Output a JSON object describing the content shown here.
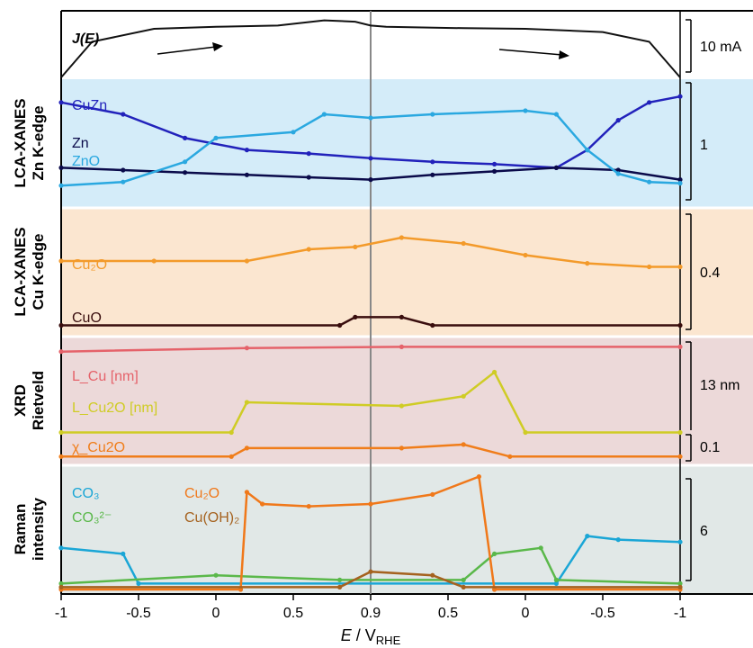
{
  "figure": {
    "x_axis": {
      "label_E": "E",
      "label_sep": " / ",
      "label_V": "V",
      "label_sub": "RHE",
      "ticks": [
        "-1",
        "-0.5",
        "0",
        "0.5",
        "0.9",
        "0.5",
        "0",
        "-0.5",
        "-1"
      ]
    },
    "panels": [
      {
        "id": "je",
        "label_lines": [],
        "bg": "#ffffff",
        "scale": "10 mA"
      },
      {
        "id": "zn",
        "label_lines": [
          "LCA-XANES",
          "Zn K-edge"
        ],
        "bg": "#d4ecf9",
        "scale": "1"
      },
      {
        "id": "cu",
        "label_lines": [
          "LCA-XANES",
          "Cu K-edge"
        ],
        "bg": "#fbe6d0",
        "scale": "0.4"
      },
      {
        "id": "xrd",
        "label_lines": [
          "XRD",
          "Rietveld"
        ],
        "bg": "#ecd9d9",
        "scale_top": "13 nm",
        "scale_bottom": "0.1"
      },
      {
        "id": "raman",
        "label_lines": [
          "Raman",
          "intensity"
        ],
        "bg": "#e1e8e7",
        "scale": "6"
      }
    ],
    "legends": {
      "je": "J(E)",
      "zn": [
        "CuZn",
        "Zn",
        "ZnO"
      ],
      "cu": [
        "Cu₂O",
        "CuO"
      ],
      "xrd": [
        "L_Cu [nm]",
        "L_Cu2O [nm]",
        "χ_Cu2O"
      ],
      "raman": [
        "CO₃",
        "CO₃²⁻",
        "Cu₂O",
        "Cu(OH)₂"
      ]
    }
  },
  "chart_data": {
    "type": "line",
    "x_axis_note": "cyclic sweep: -1 → 0.9 → -1 V_RHE, position index 0..2",
    "x_ticks": [
      0,
      0.25,
      0.5,
      0.75,
      1.0,
      1.25,
      1.5,
      1.75,
      2.0
    ],
    "x_tick_labels": [
      "-1",
      "-0.5",
      "0",
      "0.5",
      "0.9",
      "0.5",
      "0",
      "-0.5",
      "-1"
    ],
    "series": [
      {
        "panel": "je",
        "name": "J(E)",
        "color": "#111111",
        "x": [
          0.0,
          0.1,
          0.3,
          0.5,
          0.7,
          0.85,
          0.95,
          1.0,
          1.05,
          1.3,
          1.5,
          1.75,
          1.9,
          2.0
        ],
        "y": [
          0.0,
          0.55,
          0.75,
          0.78,
          0.8,
          0.88,
          0.86,
          0.8,
          0.78,
          0.76,
          0.75,
          0.7,
          0.55,
          0.0
        ]
      },
      {
        "panel": "zn",
        "name": "CuZn",
        "color": "#2222bb",
        "x": [
          0.0,
          0.2,
          0.4,
          0.6,
          0.8,
          1.0,
          1.2,
          1.4,
          1.6,
          1.7,
          1.8,
          1.9,
          2.0
        ],
        "y": [
          0.85,
          0.75,
          0.55,
          0.45,
          0.42,
          0.38,
          0.35,
          0.33,
          0.3,
          0.45,
          0.7,
          0.85,
          0.9
        ]
      },
      {
        "panel": "zn",
        "name": "Zn",
        "color": "#0a0a4a",
        "x": [
          0.0,
          0.2,
          0.4,
          0.6,
          0.8,
          1.0,
          1.2,
          1.4,
          1.6,
          1.8,
          2.0
        ],
        "y": [
          0.3,
          0.28,
          0.26,
          0.24,
          0.22,
          0.2,
          0.24,
          0.27,
          0.3,
          0.28,
          0.2
        ]
      },
      {
        "panel": "zn",
        "name": "ZnO",
        "color": "#2aa8e0",
        "x": [
          0.0,
          0.2,
          0.4,
          0.5,
          0.75,
          0.85,
          1.0,
          1.2,
          1.5,
          1.6,
          1.7,
          1.8,
          1.9,
          2.0
        ],
        "y": [
          0.15,
          0.18,
          0.35,
          0.55,
          0.6,
          0.75,
          0.72,
          0.75,
          0.78,
          0.75,
          0.45,
          0.25,
          0.18,
          0.17
        ]
      },
      {
        "panel": "cu",
        "name": "Cu₂O",
        "color": "#f39a2a",
        "x": [
          0.0,
          0.3,
          0.6,
          0.8,
          0.95,
          1.1,
          1.3,
          1.5,
          1.7,
          1.9,
          2.0
        ],
        "y": [
          0.6,
          0.6,
          0.6,
          0.7,
          0.72,
          0.8,
          0.75,
          0.65,
          0.58,
          0.55,
          0.55
        ]
      },
      {
        "panel": "cu",
        "name": "CuO",
        "color": "#3a0e0e",
        "x": [
          0.0,
          0.9,
          0.95,
          1.1,
          1.2,
          2.0
        ],
        "y": [
          0.05,
          0.05,
          0.12,
          0.12,
          0.05,
          0.05
        ]
      },
      {
        "panel": "xrd",
        "name": "L_Cu [nm]",
        "color": "#e5626a",
        "x": [
          0.0,
          0.6,
          1.1,
          2.0
        ],
        "y": [
          0.92,
          0.95,
          0.96,
          0.96
        ]
      },
      {
        "panel": "xrd",
        "name": "L_Cu2O [nm]",
        "color": "#cfcc25",
        "x": [
          0.0,
          0.55,
          0.6,
          1.1,
          1.3,
          1.4,
          1.5,
          2.0
        ],
        "y": [
          0.25,
          0.25,
          0.5,
          0.47,
          0.55,
          0.75,
          0.25,
          0.25
        ]
      },
      {
        "panel": "xrd",
        "name": "χ_Cu2O",
        "color": "#f07d1a",
        "x": [
          0.0,
          0.55,
          0.6,
          1.1,
          1.3,
          1.45,
          2.0
        ],
        "y": [
          0.05,
          0.05,
          0.12,
          0.12,
          0.15,
          0.05,
          0.05
        ]
      },
      {
        "panel": "raman",
        "name": "CO₃",
        "color": "#1aa6d6",
        "x": [
          0.0,
          0.2,
          0.25,
          1.6,
          1.7,
          1.8,
          2.0
        ],
        "y": [
          0.35,
          0.3,
          0.05,
          0.05,
          0.45,
          0.42,
          0.4
        ]
      },
      {
        "panel": "raman",
        "name": "CO₃²⁻",
        "color": "#5ab84a",
        "x": [
          0.0,
          0.5,
          0.9,
          1.3,
          1.4,
          1.55,
          1.6,
          2.0
        ],
        "y": [
          0.05,
          0.12,
          0.08,
          0.08,
          0.3,
          0.35,
          0.08,
          0.05
        ]
      },
      {
        "panel": "raman",
        "name": "Cu₂O",
        "color": "#f0781a",
        "x": [
          0.0,
          0.58,
          0.6,
          0.65,
          0.8,
          1.0,
          1.2,
          1.35,
          1.4,
          2.0
        ],
        "y": [
          0.0,
          0.0,
          0.82,
          0.72,
          0.7,
          0.72,
          0.8,
          0.95,
          0.0,
          0.0
        ]
      },
      {
        "panel": "raman",
        "name": "Cu(OH)₂",
        "color": "#a5621f",
        "x": [
          0.0,
          0.9,
          1.0,
          1.2,
          1.3,
          2.0
        ],
        "y": [
          0.02,
          0.02,
          0.15,
          0.12,
          0.02,
          0.02
        ]
      }
    ]
  }
}
